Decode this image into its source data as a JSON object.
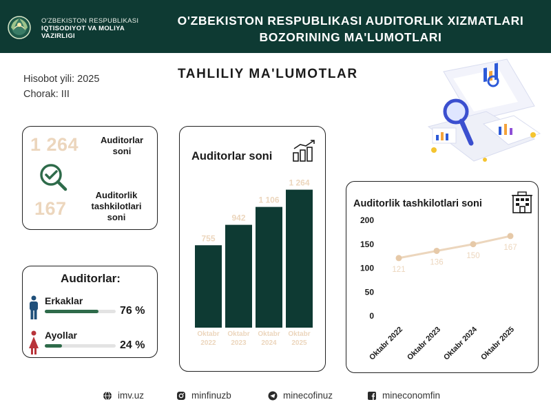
{
  "header": {
    "ministry_line1": "O'ZBEKISTON RESPUBLIKASI",
    "ministry_line2": "IQTISODIYOT VA MOLIYA",
    "ministry_line3": "VAZIRLIGI",
    "title_line1": "O'ZBEKISTON RESPUBLIKASI AUDITORLIK XIZMATLARI",
    "title_line2": "BOZORINING MA'LUMOTLARI"
  },
  "report": {
    "year": "Hisobot yili: 2025",
    "quarter": "Chorak: III"
  },
  "section_title": "TAHLILIY MA'LUMOTLAR",
  "summary": {
    "auditors_count": "1 264",
    "auditors_label": "Auditorlar soni",
    "orgs_count": "167",
    "orgs_label": "Auditorlik tashkilotlari soni"
  },
  "gender": {
    "title": "Auditorlar:",
    "male_label": "Erkaklar",
    "male_pct_text": "76 %",
    "male_pct": 76,
    "female_label": "Ayollar",
    "female_pct_text": "24 %",
    "female_pct": 24
  },
  "chart_data": [
    {
      "type": "bar",
      "title": "Auditorlar soni",
      "categories": [
        [
          "Oktabr",
          "2022"
        ],
        [
          "Oktabr",
          "2023"
        ],
        [
          "Oktabr",
          "2024"
        ],
        [
          "Oktabr",
          "2025"
        ]
      ],
      "values": [
        755,
        942,
        1106,
        1264
      ],
      "value_labels": [
        "755",
        "942",
        "1 106",
        "1 264"
      ],
      "ylim": [
        0,
        1400
      ],
      "grid": false,
      "bar_color": "#0e3a33",
      "label_color": "#ecd6bd"
    },
    {
      "type": "line",
      "title": "Auditorlik tashkilotlari soni",
      "categories": [
        "Oktabr 2022",
        "Oktabr 2023",
        "Oktabr 2024",
        "Oktabr 2025"
      ],
      "values": [
        121,
        136,
        150,
        167
      ],
      "yticks": [
        0,
        50,
        100,
        150,
        200
      ],
      "ylim": [
        0,
        200
      ],
      "grid": false,
      "line_color": "#ecd6bd",
      "label_color": "#ecd6bd"
    }
  ],
  "footer": {
    "website": "imv.uz",
    "instagram": "minfinuzb",
    "telegram": "minecofinuz",
    "facebook": "mineconomfin"
  },
  "colors": {
    "header_bg": "#0e3a33",
    "accent_green": "#2e6b4a",
    "beige": "#ecd6bd",
    "male_blue": "#1f4f7a",
    "female_red": "#b8343a"
  }
}
